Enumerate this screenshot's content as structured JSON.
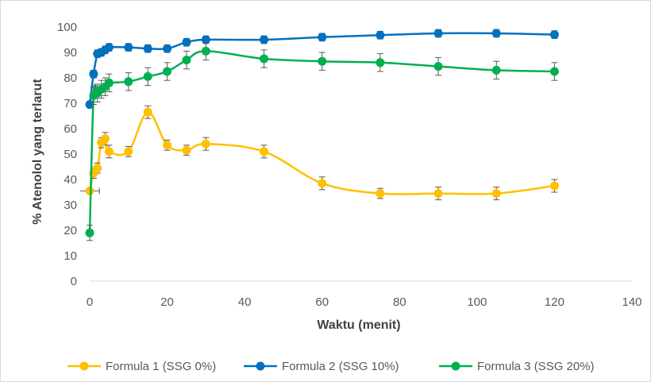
{
  "chart_data": {
    "type": "line",
    "title": "",
    "xlabel": "Waktu (menit)",
    "ylabel": "% Atenolol yang terlarut",
    "xlim": [
      0,
      140
    ],
    "ylim": [
      0,
      100
    ],
    "x_ticks": [
      0,
      20,
      40,
      60,
      80,
      100,
      120,
      140
    ],
    "y_ticks": [
      0,
      10,
      20,
      30,
      40,
      50,
      60,
      70,
      80,
      90,
      100
    ],
    "grid": false,
    "legend_position": "bottom",
    "smooth": true,
    "series": [
      {
        "name": "Formula 1 (SSG 0%)",
        "color": "#FFC000",
        "x": [
          0,
          1,
          2,
          3,
          4,
          5,
          10,
          15,
          20,
          25,
          30,
          45,
          60,
          75,
          90,
          105,
          120
        ],
        "y": [
          35.5,
          42.5,
          44.5,
          54.5,
          56,
          51,
          51,
          66.5,
          53.5,
          51.5,
          54,
          51,
          38.5,
          34.5,
          34.5,
          34.5,
          37.5
        ],
        "err": [
          0.8,
          2.0,
          2.0,
          2.0,
          2.5,
          2.5,
          2.0,
          2.5,
          2.0,
          2.0,
          2.5,
          2.5,
          2.5,
          2.0,
          2.5,
          2.5,
          2.5
        ],
        "xerr": [
          2.5,
          0,
          0,
          0,
          0,
          0,
          0,
          0,
          0,
          0,
          0,
          0,
          0,
          0,
          0,
          0,
          0
        ]
      },
      {
        "name": "Formula 2 (SSG 10%)",
        "color": "#0070C0",
        "x": [
          0,
          1,
          2,
          3,
          4,
          5,
          10,
          15,
          20,
          25,
          30,
          45,
          60,
          75,
          90,
          105,
          120
        ],
        "y": [
          69.5,
          81.5,
          89.5,
          90,
          91,
          92,
          92,
          91.5,
          91.5,
          94,
          95,
          95,
          96,
          96.8,
          97.5,
          97.5,
          97
        ],
        "err": [
          0.5,
          1.5,
          1.5,
          1.5,
          1.5,
          1.5,
          1.5,
          1.5,
          1.5,
          1.5,
          1.5,
          1.5,
          1.5,
          1.5,
          1.5,
          1.5,
          1.5
        ],
        "xerr": [
          0,
          0,
          0,
          0,
          0,
          0,
          0,
          0,
          0,
          0,
          0,
          0,
          0,
          0,
          0,
          0,
          0
        ]
      },
      {
        "name": "Formula 3 (SSG 20%)",
        "color": "#00B050",
        "x": [
          0,
          1,
          2,
          3,
          4,
          5,
          10,
          15,
          20,
          25,
          30,
          45,
          60,
          75,
          90,
          105,
          120
        ],
        "y": [
          19,
          73,
          74,
          75.5,
          76.5,
          78,
          78.5,
          80.5,
          82.5,
          87,
          90.5,
          87.5,
          86.5,
          86,
          84.5,
          83,
          82.5
        ],
        "err": [
          3.0,
          3.5,
          3.5,
          3.5,
          3.5,
          3.5,
          3.5,
          3.5,
          3.5,
          3.5,
          3.5,
          3.5,
          3.5,
          3.5,
          3.5,
          3.5,
          3.5
        ],
        "xerr": [
          0,
          0,
          0,
          0,
          0,
          0,
          0,
          0,
          0,
          0,
          0,
          0,
          0,
          0,
          0,
          0,
          0
        ]
      }
    ]
  }
}
